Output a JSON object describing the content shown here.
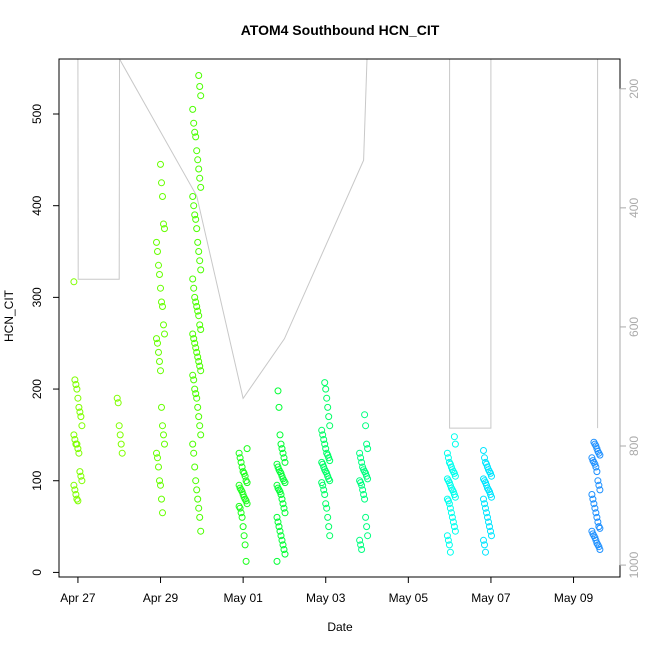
{
  "chart_data": {
    "type": "scatter",
    "title": "ATOM4 Southbound HCN_CIT",
    "xlabel": "Date",
    "ylabel": "HCN_CIT",
    "x_ticks": [
      "2016-04-27",
      "2016-04-29",
      "2016-05-01",
      "2016-05-03",
      "2016-05-05",
      "2016-05-07",
      "2016-05-09"
    ],
    "x_tick_labels": [
      "Apr 27",
      "Apr 29",
      "May 01",
      "May 03",
      "May 05",
      "May 07",
      "May 09"
    ],
    "xlim": [
      "2016-04-26T13:00",
      "2016-05-10T03:00"
    ],
    "ylim": [
      -5,
      560
    ],
    "y_ticks": [
      0,
      100,
      200,
      300,
      400,
      500
    ],
    "y2_ticks": [
      200,
      400,
      600,
      800,
      1000
    ],
    "y2lim": [
      1020,
      150
    ],
    "y2_color": "#aaaaaa",
    "point_colors_note": "colored by time: yellow-green to blue",
    "series": [
      {
        "name": "HCN_CIT",
        "marker": "open-circle",
        "clusters": [
          {
            "t": "2016-04-27T00:00",
            "color": "#7fff00",
            "values": [
              317,
              210,
              205,
              200,
              190,
              180,
              175,
              170,
              160,
              150,
              145,
              140,
              140,
              135,
              130,
              110,
              105,
              100,
              95,
              90,
              85,
              80,
              78
            ]
          },
          {
            "t": "2016-04-28T00:00",
            "color": "#7fff00",
            "values": [
              190,
              185,
              160,
              150,
              140,
              130
            ]
          },
          {
            "t": "2016-04-29T00:00",
            "color": "#66ff00",
            "values": [
              445,
              425,
              410,
              380,
              375,
              360,
              350,
              335,
              325,
              310,
              295,
              290,
              270,
              260,
              255,
              250,
              240,
              230,
              220,
              180,
              160,
              150,
              140,
              130,
              125,
              115,
              100,
              95,
              80,
              65
            ]
          },
          {
            "t": "2016-04-29T21:00",
            "color": "#4cff00",
            "values": [
              542,
              530,
              520,
              505,
              490,
              480,
              475,
              460,
              450,
              440,
              430,
              420,
              410,
              400,
              390,
              385,
              375,
              360,
              350,
              340,
              330,
              320,
              310,
              300,
              295,
              290,
              285,
              280,
              270,
              265,
              260,
              255,
              250,
              245,
              240,
              235,
              230,
              225,
              220,
              215,
              210,
              200,
              195,
              190,
              180,
              170,
              160,
              150,
              140,
              130,
              115,
              100,
              90,
              80,
              70,
              60,
              45
            ]
          },
          {
            "t": "2016-05-01T00:00",
            "color": "#19ff19",
            "values": [
              135,
              130,
              125,
              120,
              115,
              110,
              108,
              105,
              100,
              98,
              95,
              92,
              90,
              88,
              85,
              82,
              80,
              78,
              75,
              72,
              70,
              65,
              60,
              50,
              40,
              30,
              12
            ]
          },
          {
            "t": "2016-05-01T22:00",
            "color": "#00ff33",
            "values": [
              198,
              180,
              150,
              140,
              135,
              130,
              125,
              120,
              118,
              115,
              112,
              110,
              108,
              105,
              102,
              100,
              98,
              95,
              92,
              90,
              88,
              85,
              80,
              75,
              70,
              65,
              60,
              55,
              50,
              45,
              40,
              35,
              30,
              25,
              20,
              12
            ]
          },
          {
            "t": "2016-05-03T00:00",
            "color": "#00ff66",
            "values": [
              207,
              200,
              190,
              180,
              170,
              160,
              155,
              150,
              145,
              140,
              135,
              130,
              128,
              125,
              122,
              120,
              118,
              115,
              112,
              110,
              108,
              105,
              102,
              100,
              98,
              95,
              90,
              85,
              75,
              70,
              60,
              50,
              40
            ]
          },
          {
            "t": "2016-05-03T22:00",
            "color": "#00ff80",
            "values": [
              172,
              160,
              140,
              135,
              130,
              125,
              120,
              115,
              112,
              110,
              108,
              105,
              102,
              100,
              98,
              95,
              90,
              85,
              80,
              60,
              50,
              40,
              35,
              30,
              25
            ]
          },
          {
            "t": "2016-05-06T01:00",
            "color": "#00ffee",
            "values": [
              148,
              140,
              130,
              125,
              120,
              118,
              115,
              112,
              110,
              108,
              105,
              102,
              100,
              98,
              95,
              92,
              90,
              88,
              85,
              82,
              80,
              78,
              75,
              70,
              65,
              60,
              55,
              50,
              45,
              40,
              35,
              30,
              22
            ]
          },
          {
            "t": "2016-05-06T22:00",
            "color": "#00e5ff",
            "values": [
              133,
              125,
              120,
              118,
              115,
              112,
              110,
              108,
              105,
              102,
              100,
              98,
              95,
              92,
              90,
              88,
              85,
              82,
              80,
              75,
              70,
              65,
              60,
              55,
              50,
              45,
              40,
              35,
              30,
              22
            ]
          },
          {
            "t": "2016-05-09T13:00",
            "color": "#1e90ff",
            "values": [
              142,
              140,
              138,
              135,
              132,
              130,
              128,
              125,
              122,
              120,
              118,
              115,
              110,
              100,
              95,
              90,
              85,
              80,
              75,
              70,
              65,
              60,
              55,
              50,
              48,
              45,
              42,
              40,
              38,
              35,
              32,
              30,
              28,
              25
            ]
          }
        ]
      }
    ],
    "altitude_trace": {
      "color": "#c8c8c8",
      "axis": "right",
      "description_points": [
        [
          "2016-04-27T00:00",
          150
        ],
        [
          "2016-04-27T00:10",
          520
        ],
        [
          "2016-04-28T00:00",
          520
        ],
        [
          "2016-04-28T00:10",
          150
        ],
        [
          "2016-04-29T21:00",
          380
        ],
        [
          "2016-05-01T00:00",
          720
        ],
        [
          "2016-05-02T00:00",
          620
        ],
        [
          "2016-05-03T22:00",
          320
        ],
        [
          "2016-05-04T00:00",
          150
        ],
        [
          "2016-05-06T00:00",
          150
        ],
        [
          "2016-05-06T00:00",
          770
        ],
        [
          "2016-05-07T00:00",
          770
        ],
        [
          "2016-05-07T00:00",
          150
        ],
        [
          "2016-05-09T14:00",
          150
        ],
        [
          "2016-05-09T14:00",
          770
        ]
      ]
    }
  }
}
